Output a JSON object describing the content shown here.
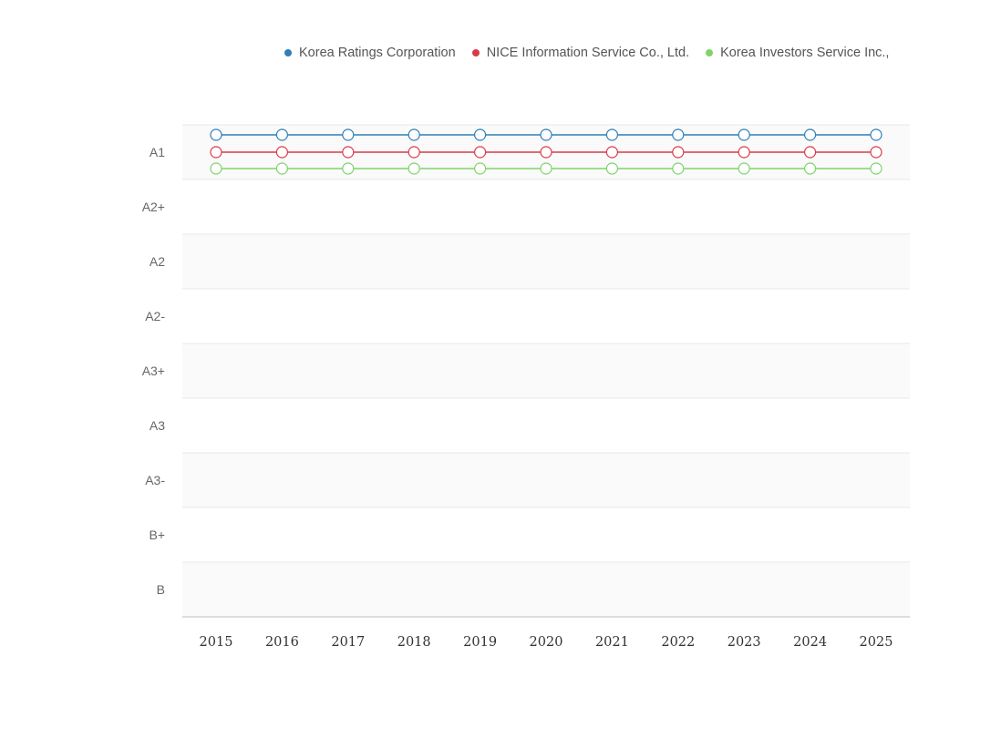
{
  "chart_data": {
    "type": "line",
    "x": [
      "2015",
      "2016",
      "2017",
      "2018",
      "2019",
      "2020",
      "2021",
      "2022",
      "2023",
      "2024",
      "2025"
    ],
    "y_categories": [
      "A1",
      "A2+",
      "A2",
      "A2-",
      "A3+",
      "A3",
      "A3-",
      "B+",
      "B"
    ],
    "series": [
      {
        "name": "Korea Ratings Corporation",
        "color": "#2f7fb8",
        "values": [
          "A1",
          "A1",
          "A1",
          "A1",
          "A1",
          "A1",
          "A1",
          "A1",
          "A1",
          "A1",
          "A1"
        ]
      },
      {
        "name": "NICE Information Service Co., Ltd.",
        "color": "#d93a4a",
        "values": [
          "A1",
          "A1",
          "A1",
          "A1",
          "A1",
          "A1",
          "A1",
          "A1",
          "A1",
          "A1",
          "A1"
        ]
      },
      {
        "name": "Korea Investors Service Inc.,",
        "color": "#7fd36a",
        "values": [
          "A1",
          "A1",
          "A1",
          "A1",
          "A1",
          "A1",
          "A1",
          "A1",
          "A1",
          "A1",
          "A1"
        ]
      }
    ],
    "legend_position": "top",
    "grid": true
  }
}
